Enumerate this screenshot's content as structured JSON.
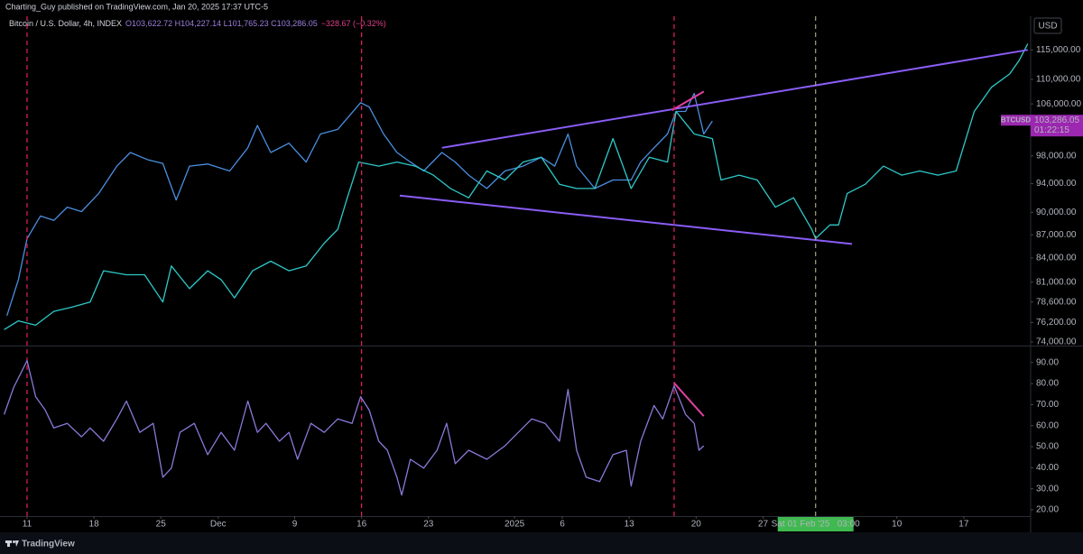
{
  "header": "Charting_Guy published on TradingView.com, Jan 20, 2025 17:37 UTC-5",
  "footer": "TradingView",
  "chart_data": [
    {
      "type": "line",
      "title": "Bitcoin / U.S. Dollar, 4h, INDEX",
      "ohlc": "O103,622.72 H104,227.14 L101,765.23 C103,286.05",
      "change": "−328.67 (−0.32%)",
      "currency": "USD",
      "log": true,
      "grid": false,
      "xlim": [
        -2.83,
        105
      ],
      "ylim": [
        73700,
        121000
      ],
      "yticks": [
        {
          "value": 115000,
          "label": "115,000.00"
        },
        {
          "value": 110000,
          "label": "110,000.00"
        },
        {
          "value": 106000,
          "label": "106,000.00"
        },
        {
          "value": 98000,
          "label": "98,000.00"
        },
        {
          "value": 94000,
          "label": "94,000.00"
        },
        {
          "value": 90000,
          "label": "90,000.00"
        },
        {
          "value": 87000,
          "label": "87,000.00"
        },
        {
          "value": 84000,
          "label": "84,000.00"
        },
        {
          "value": 81000,
          "label": "81,000.00"
        },
        {
          "value": 78600,
          "label": "78,600.00"
        },
        {
          "value": 76200,
          "label": "76,200.00"
        },
        {
          "value": 74000,
          "label": "74,000.00"
        }
      ],
      "series": [
        {
          "color": "#4a8fe0",
          "x": [
            -2.1,
            -0.9,
            0,
            1.4,
            2.8,
            4.2,
            5.7,
            7.5,
            9.4,
            10.8,
            12.7,
            14.2,
            15.6,
            17,
            18.9,
            21.2,
            23.1,
            24.1,
            25.5,
            27.4,
            29.2,
            30.7,
            32.5,
            34.9,
            35.8,
            37.3,
            38.7,
            40.1,
            41.5,
            43.4,
            44.8,
            46.2,
            48.1,
            50,
            51.9,
            53.8,
            55.2,
            56.6,
            57.5,
            59.4,
            61.3,
            63.2,
            64.2,
            65.6,
            67,
            67.9,
            68.9,
            69.8,
            70.8,
            71.7
          ],
          "values": [
            77000,
            81300,
            86500,
            89500,
            88900,
            90700,
            90100,
            92600,
            96500,
            98500,
            97400,
            96900,
            91700,
            96500,
            96800,
            95800,
            99200,
            102600,
            98500,
            99900,
            97100,
            101300,
            102000,
            106200,
            105500,
            101300,
            98500,
            97100,
            95800,
            98500,
            97100,
            95200,
            93300,
            95800,
            96500,
            97800,
            96500,
            101300,
            96500,
            93300,
            94500,
            94500,
            97100,
            99200,
            101300,
            104800,
            104800,
            107700,
            101300,
            103300
          ]
        },
        {
          "color": "#2ec8c8",
          "x": [
            -2.4,
            -0.9,
            0.9,
            2.8,
            4.7,
            6.6,
            8,
            10.4,
            12.3,
            14.2,
            15.1,
            17,
            18.9,
            20.3,
            21.7,
            23.6,
            25.5,
            27.4,
            29.2,
            31.1,
            32.5,
            33.5,
            34.7,
            36.8,
            38.7,
            40.6,
            42.5,
            44.3,
            46.2,
            48.1,
            50,
            51.9,
            53.8,
            55.7,
            57.5,
            59.4,
            61.3,
            63.2,
            65.1,
            67,
            67.9,
            69.8,
            71.7,
            72.6,
            74.5,
            76.4,
            78.3,
            80.2,
            82.1,
            82.5,
            84,
            84.9,
            85.8,
            87.7,
            89.6,
            91.5,
            93.4,
            95.3,
            97.2,
            99.1,
            100.9,
            102.8,
            103.8,
            104.7
          ],
          "values": [
            75400,
            76400,
            75900,
            77500,
            78000,
            78600,
            82400,
            81900,
            81900,
            78600,
            83000,
            80200,
            82400,
            81300,
            79100,
            82400,
            83600,
            82400,
            83000,
            85900,
            87700,
            92000,
            97100,
            96500,
            97100,
            96500,
            95200,
            93300,
            92000,
            95800,
            94500,
            97100,
            97800,
            93900,
            93300,
            93300,
            100600,
            93300,
            97800,
            97100,
            104800,
            101300,
            100600,
            94500,
            95200,
            94500,
            90700,
            92000,
            87700,
            86500,
            88300,
            88300,
            92600,
            93900,
            96500,
            95200,
            95800,
            95200,
            95800,
            104800,
            108700,
            110900,
            113200,
            116100
          ]
        }
      ],
      "trendlines": [
        {
          "color": "#8a5cf6",
          "x": [
            43.4,
            104.7
          ],
          "values": [
            99200,
            115000
          ]
        },
        {
          "color": "#8a5cf6",
          "x": [
            39,
            86.3
          ],
          "values": [
            92300,
            85800
          ]
        },
        {
          "color": "#e040a0",
          "x": [
            67.5,
            70.8
          ],
          "values": [
            105000,
            108000
          ]
        }
      ],
      "vlines": [
        {
          "x": 0,
          "color": "#e91e63"
        },
        {
          "x": 35,
          "color": "#e91e63"
        },
        {
          "x": 67.7,
          "color": "#e91e63"
        },
        {
          "x": 82.5,
          "color": "#a8a47e"
        }
      ],
      "last_price": {
        "symbol": "BTCUSD",
        "value": 103286.05,
        "label": "103,286.05",
        "countdown": "01:22:15"
      }
    },
    {
      "type": "line",
      "grid": false,
      "xlim": [
        -2.83,
        105
      ],
      "ylim": [
        17,
        97.2
      ],
      "yticks": [
        {
          "value": 90,
          "label": "90.00"
        },
        {
          "value": 80,
          "label": "80.00"
        },
        {
          "value": 70,
          "label": "70.00"
        },
        {
          "value": 60,
          "label": "60.00"
        },
        {
          "value": 50,
          "label": "50.00"
        },
        {
          "value": 40,
          "label": "40.00"
        },
        {
          "value": 30,
          "label": "30.00"
        },
        {
          "value": 20,
          "label": "20.00"
        }
      ],
      "xticks": [
        {
          "value": 0,
          "label": "11"
        },
        {
          "value": 7,
          "label": "18"
        },
        {
          "value": 14,
          "label": "25"
        },
        {
          "value": 20,
          "label": "Dec"
        },
        {
          "value": 28,
          "label": "9"
        },
        {
          "value": 35,
          "label": "16"
        },
        {
          "value": 42,
          "label": "23"
        },
        {
          "value": 51,
          "label": "2025"
        },
        {
          "value": 56,
          "label": "6"
        },
        {
          "value": 63,
          "label": "13"
        },
        {
          "value": 70,
          "label": "20"
        },
        {
          "value": 77,
          "label": "27"
        },
        {
          "value": 91,
          "label": "10"
        },
        {
          "value": 98,
          "label": "17"
        }
      ],
      "crosshair": {
        "x": 82.5,
        "label": "Sat 01 Feb '25   03:00"
      },
      "series": [
        {
          "color": "#8c78d8",
          "x": [
            -2.4,
            -1.4,
            0,
            0.9,
            1.9,
            2.8,
            4.2,
            5.7,
            6.6,
            8,
            9.4,
            10.4,
            11.8,
            13.2,
            14.2,
            15.1,
            16,
            17.5,
            18.9,
            20.3,
            21.7,
            23.1,
            24.1,
            25,
            26.4,
            27.4,
            28.3,
            29.7,
            31.1,
            32.5,
            34,
            34.9,
            35.8,
            36.8,
            37.7,
            38.7,
            39.2,
            40.1,
            41.5,
            42.9,
            43.9,
            44.8,
            46.2,
            48.1,
            50,
            51.4,
            52.8,
            54.2,
            55.7,
            56.6,
            57.5,
            58.5,
            59.9,
            61.3,
            62.7,
            63.2,
            64.2,
            65.6,
            66.5,
            67.7,
            68.9,
            69.8,
            70.3,
            70.8
          ],
          "values": [
            65.3,
            78.1,
            90.9,
            73.8,
            67.4,
            58.9,
            61.1,
            54.7,
            58.9,
            52.6,
            63.2,
            71.7,
            56.8,
            61.1,
            35.5,
            39.8,
            56.8,
            61.1,
            46.2,
            56.8,
            48.3,
            71.7,
            56.8,
            61.1,
            52.6,
            56.8,
            44,
            61.1,
            56.8,
            63.2,
            61.1,
            73.8,
            67.4,
            52.6,
            48.3,
            35.5,
            27,
            44,
            39.8,
            48.3,
            61.1,
            41.9,
            48.3,
            44,
            50.4,
            56.8,
            63.2,
            61.1,
            52.6,
            77.2,
            48.3,
            35.5,
            33.4,
            46.2,
            48.3,
            31.3,
            52.6,
            69.6,
            63.2,
            78.9,
            65.3,
            61.1,
            48.3,
            50.4
          ]
        }
      ],
      "trendlines": [
        {
          "color": "#e040a0",
          "x": [
            67.7,
            70.8
          ],
          "values": [
            80.2,
            64.5
          ]
        }
      ]
    }
  ]
}
